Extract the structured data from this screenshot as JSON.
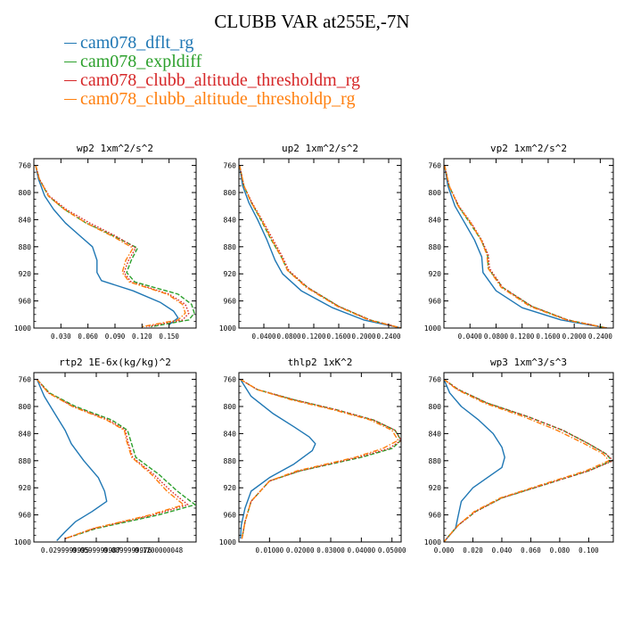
{
  "title": "CLUBB VAR at255E,-7N",
  "legend": [
    {
      "name": "cam078_dflt_rg",
      "color": "#1f77b4",
      "dash": "solid"
    },
    {
      "name": "cam078_expldiff",
      "color": "#2ca02c",
      "dash": "dashed"
    },
    {
      "name": "cam078_clubb_altitude_thresholdm_rg",
      "color": "#d62728",
      "dash": "dotted"
    },
    {
      "name": "cam078_clubb_altitude_thresholdp_rg",
      "color": "#ff7f0e",
      "dash": "dashdot"
    }
  ],
  "chart_data": [
    {
      "type": "line",
      "title": "wp2   1xm^2/s^2",
      "xlim": [
        0.0,
        0.18
      ],
      "ylim": [
        1000,
        750
      ],
      "xticks": [
        0.03,
        0.06,
        0.09,
        0.12,
        0.15
      ],
      "xtick_labels": [
        "0.030",
        "0.060",
        "0.090",
        "0.120",
        "0.150"
      ],
      "yticks": [
        760,
        800,
        840,
        880,
        920,
        960,
        1000
      ],
      "series": [
        {
          "name": "cam078_dflt_rg",
          "x": [
            0.002,
            0.005,
            0.012,
            0.022,
            0.035,
            0.052,
            0.065,
            0.07,
            0.07,
            0.075,
            0.11,
            0.14,
            0.155,
            0.16,
            0.15
          ],
          "y": [
            760,
            780,
            805,
            825,
            845,
            865,
            880,
            900,
            918,
            930,
            945,
            962,
            975,
            985,
            995
          ]
        },
        {
          "name": "cam078_expldiff",
          "x": [
            0.002,
            0.006,
            0.016,
            0.034,
            0.058,
            0.09,
            0.115,
            0.108,
            0.103,
            0.112,
            0.16,
            0.175,
            0.178,
            0.172,
            0.13
          ],
          "y": [
            760,
            780,
            805,
            825,
            845,
            865,
            882,
            900,
            918,
            932,
            950,
            965,
            978,
            988,
            998
          ]
        },
        {
          "name": "cam078_clubb_altitude_thresholdm_rg",
          "x": [
            0.002,
            0.006,
            0.017,
            0.036,
            0.062,
            0.092,
            0.113,
            0.105,
            0.1,
            0.108,
            0.15,
            0.168,
            0.172,
            0.165,
            0.125
          ],
          "y": [
            760,
            780,
            805,
            825,
            845,
            865,
            882,
            900,
            918,
            932,
            950,
            965,
            978,
            988,
            998
          ]
        },
        {
          "name": "cam078_clubb_altitude_thresholdp_rg",
          "x": [
            0.002,
            0.006,
            0.016,
            0.034,
            0.058,
            0.088,
            0.11,
            0.102,
            0.098,
            0.106,
            0.148,
            0.165,
            0.168,
            0.16,
            0.12
          ],
          "y": [
            760,
            780,
            805,
            825,
            845,
            865,
            882,
            900,
            918,
            932,
            950,
            965,
            978,
            988,
            998
          ]
        }
      ]
    },
    {
      "type": "line",
      "title": "up2   1xm^2/s^2",
      "xlim": [
        0.0,
        0.26
      ],
      "ylim": [
        1000,
        750
      ],
      "xticks": [
        0.04,
        0.08,
        0.12,
        0.16,
        0.2,
        0.24
      ],
      "xtick_labels": [
        "0.0400",
        "0.0800",
        "0.1200",
        "0.1600",
        "0.2000",
        "0.2400"
      ],
      "yticks": [
        760,
        800,
        840,
        880,
        920,
        960,
        1000
      ],
      "series": [
        {
          "name": "cam078_dflt_rg",
          "x": [
            0.001,
            0.006,
            0.016,
            0.03,
            0.045,
            0.058,
            0.07,
            0.1,
            0.15,
            0.2,
            0.26
          ],
          "y": [
            760,
            790,
            815,
            840,
            870,
            900,
            920,
            945,
            970,
            988,
            1000
          ]
        },
        {
          "name": "cam078_expldiff",
          "x": [
            0.001,
            0.008,
            0.02,
            0.035,
            0.052,
            0.068,
            0.078,
            0.11,
            0.16,
            0.21,
            0.26
          ],
          "y": [
            760,
            790,
            815,
            840,
            870,
            895,
            915,
            940,
            968,
            988,
            1000
          ]
        },
        {
          "name": "cam078_clubb_altitude_thresholdm_rg",
          "x": [
            0.001,
            0.008,
            0.021,
            0.037,
            0.055,
            0.07,
            0.08,
            0.11,
            0.16,
            0.21,
            0.26
          ],
          "y": [
            760,
            790,
            815,
            840,
            870,
            895,
            915,
            940,
            968,
            988,
            1000
          ]
        },
        {
          "name": "cam078_clubb_altitude_thresholdp_rg",
          "x": [
            0.001,
            0.008,
            0.02,
            0.036,
            0.053,
            0.068,
            0.078,
            0.108,
            0.158,
            0.208,
            0.26
          ],
          "y": [
            760,
            790,
            815,
            840,
            870,
            895,
            915,
            940,
            968,
            988,
            1000
          ]
        }
      ]
    },
    {
      "type": "line",
      "title": "vp2   1xm^2/s^2",
      "xlim": [
        0.0,
        0.26
      ],
      "ylim": [
        1000,
        750
      ],
      "xticks": [
        0.04,
        0.08,
        0.12,
        0.16,
        0.2,
        0.24
      ],
      "xtick_labels": [
        "0.0400",
        "0.0800",
        "0.1200",
        "0.1600",
        "0.2000",
        "0.2400"
      ],
      "yticks": [
        760,
        800,
        840,
        880,
        920,
        960,
        1000
      ],
      "series": [
        {
          "name": "cam078_dflt_rg",
          "x": [
            0.001,
            0.006,
            0.017,
            0.032,
            0.047,
            0.058,
            0.06,
            0.08,
            0.12,
            0.18,
            0.25
          ],
          "y": [
            760,
            790,
            820,
            845,
            870,
            895,
            918,
            945,
            970,
            988,
            1000
          ]
        },
        {
          "name": "cam078_expldiff",
          "x": [
            0.001,
            0.008,
            0.022,
            0.04,
            0.057,
            0.067,
            0.068,
            0.09,
            0.135,
            0.19,
            0.25
          ],
          "y": [
            760,
            790,
            820,
            845,
            870,
            892,
            912,
            940,
            968,
            988,
            1000
          ]
        },
        {
          "name": "cam078_clubb_altitude_thresholdm_rg",
          "x": [
            0.001,
            0.008,
            0.023,
            0.042,
            0.058,
            0.068,
            0.07,
            0.09,
            0.135,
            0.19,
            0.25
          ],
          "y": [
            760,
            790,
            820,
            845,
            870,
            892,
            912,
            940,
            968,
            988,
            1000
          ]
        },
        {
          "name": "cam078_clubb_altitude_thresholdp_rg",
          "x": [
            0.001,
            0.008,
            0.022,
            0.041,
            0.057,
            0.066,
            0.068,
            0.088,
            0.132,
            0.188,
            0.25
          ],
          "y": [
            760,
            790,
            820,
            845,
            870,
            892,
            912,
            940,
            968,
            988,
            1000
          ]
        }
      ]
    },
    {
      "type": "line",
      "title": "rtp2   1E-6x(kg/kg)^2",
      "xlim": [
        0.0,
        0.156
      ],
      "ylim": [
        1000,
        750
      ],
      "xticks": [
        0.03,
        0.06,
        0.09,
        0.12
      ],
      "xtick_labels": [
        "0.0299999995",
        "0.0599999987",
        "0.0899999976",
        "0.1200000048"
      ],
      "yticks": [
        760,
        800,
        840,
        880,
        920,
        960,
        1000
      ],
      "series": [
        {
          "name": "cam078_dflt_rg",
          "x": [
            0.003,
            0.01,
            0.02,
            0.03,
            0.036,
            0.048,
            0.062,
            0.068,
            0.07,
            0.056,
            0.04,
            0.03,
            0.022
          ],
          "y": [
            760,
            785,
            810,
            835,
            855,
            880,
            905,
            925,
            940,
            955,
            970,
            985,
            998
          ]
        },
        {
          "name": "cam078_expldiff",
          "x": [
            0.003,
            0.015,
            0.04,
            0.075,
            0.09,
            0.093,
            0.098,
            0.12,
            0.138,
            0.155,
            0.12,
            0.06,
            0.03
          ],
          "y": [
            760,
            780,
            800,
            820,
            835,
            850,
            875,
            900,
            925,
            945,
            960,
            980,
            995
          ]
        },
        {
          "name": "cam078_clubb_altitude_thresholdm_rg",
          "x": [
            0.003,
            0.014,
            0.038,
            0.072,
            0.088,
            0.09,
            0.095,
            0.115,
            0.132,
            0.148,
            0.115,
            0.058,
            0.03
          ],
          "y": [
            760,
            780,
            800,
            820,
            835,
            850,
            875,
            900,
            925,
            945,
            960,
            980,
            995
          ]
        },
        {
          "name": "cam078_clubb_altitude_thresholdp_rg",
          "x": [
            0.003,
            0.014,
            0.037,
            0.07,
            0.087,
            0.089,
            0.094,
            0.113,
            0.128,
            0.144,
            0.112,
            0.057,
            0.03
          ],
          "y": [
            760,
            780,
            800,
            820,
            835,
            850,
            875,
            900,
            925,
            945,
            960,
            980,
            995
          ]
        }
      ]
    },
    {
      "type": "line",
      "title": "thlp2   1xK^2",
      "xlim": [
        0.0,
        0.053
      ],
      "ylim": [
        1000,
        750
      ],
      "xticks": [
        0.01,
        0.02,
        0.03,
        0.04,
        0.05
      ],
      "xtick_labels": [
        "0.01000",
        "0.02000",
        "0.03000",
        "0.04000",
        "0.05000"
      ],
      "yticks": [
        760,
        800,
        840,
        880,
        920,
        960,
        1000
      ],
      "series": [
        {
          "name": "cam078_dflt_rg",
          "x": [
            0.0005,
            0.004,
            0.011,
            0.018,
            0.023,
            0.025,
            0.024,
            0.018,
            0.01,
            0.004,
            0.002,
            0.0008,
            0.0005
          ],
          "y": [
            760,
            785,
            810,
            830,
            845,
            855,
            865,
            885,
            905,
            925,
            950,
            975,
            995
          ]
        },
        {
          "name": "cam078_expldiff",
          "x": [
            0.0005,
            0.006,
            0.018,
            0.032,
            0.044,
            0.051,
            0.053,
            0.05,
            0.04,
            0.02,
            0.01,
            0.004,
            0.002,
            0.001
          ],
          "y": [
            760,
            775,
            790,
            805,
            820,
            835,
            850,
            862,
            875,
            895,
            910,
            940,
            970,
            995
          ]
        },
        {
          "name": "cam078_clubb_altitude_thresholdm_rg",
          "x": [
            0.0005,
            0.006,
            0.018,
            0.032,
            0.044,
            0.051,
            0.053,
            0.049,
            0.039,
            0.02,
            0.01,
            0.004,
            0.002,
            0.001
          ],
          "y": [
            760,
            775,
            790,
            805,
            820,
            835,
            850,
            862,
            875,
            895,
            910,
            940,
            970,
            995
          ]
        },
        {
          "name": "cam078_clubb_altitude_thresholdp_rg",
          "x": [
            0.0005,
            0.006,
            0.017,
            0.031,
            0.043,
            0.05,
            0.052,
            0.047,
            0.038,
            0.019,
            0.01,
            0.004,
            0.002,
            0.001
          ],
          "y": [
            760,
            775,
            790,
            805,
            820,
            835,
            850,
            862,
            875,
            895,
            910,
            940,
            970,
            995
          ]
        }
      ]
    },
    {
      "type": "line",
      "title": "wp3   1xm^3/s^3",
      "xlim": [
        0.0,
        0.117
      ],
      "ylim": [
        1000,
        750
      ],
      "xticks": [
        0.0,
        0.02,
        0.04,
        0.06,
        0.08,
        0.1
      ],
      "xtick_labels": [
        "0.000",
        "0.020",
        "0.040",
        "0.060",
        "0.080",
        "0.100"
      ],
      "yticks": [
        760,
        800,
        840,
        880,
        920,
        960,
        1000
      ],
      "series": [
        {
          "name": "cam078_dflt_rg",
          "x": [
            0.0,
            0.004,
            0.012,
            0.024,
            0.034,
            0.04,
            0.042,
            0.04,
            0.03,
            0.02,
            0.012,
            0.01,
            0.008,
            0.002,
            0.0
          ],
          "y": [
            760,
            780,
            800,
            820,
            840,
            860,
            875,
            890,
            905,
            920,
            940,
            960,
            980,
            995,
            1000
          ]
        },
        {
          "name": "cam078_expldiff",
          "x": [
            0.0,
            0.01,
            0.03,
            0.058,
            0.082,
            0.1,
            0.112,
            0.116,
            0.1,
            0.07,
            0.04,
            0.022,
            0.01,
            0.003,
            0.0
          ],
          "y": [
            760,
            775,
            795,
            815,
            835,
            855,
            870,
            880,
            895,
            915,
            935,
            955,
            975,
            992,
            1000
          ]
        },
        {
          "name": "cam078_clubb_altitude_thresholdm_rg",
          "x": [
            0.0,
            0.01,
            0.03,
            0.058,
            0.082,
            0.1,
            0.112,
            0.117,
            0.1,
            0.07,
            0.04,
            0.022,
            0.01,
            0.003,
            0.0
          ],
          "y": [
            760,
            775,
            795,
            815,
            835,
            855,
            870,
            880,
            895,
            915,
            935,
            955,
            975,
            992,
            1000
          ]
        },
        {
          "name": "cam078_clubb_altitude_thresholdp_rg",
          "x": [
            0.0,
            0.009,
            0.028,
            0.055,
            0.078,
            0.097,
            0.11,
            0.114,
            0.098,
            0.068,
            0.039,
            0.021,
            0.01,
            0.003,
            0.0
          ],
          "y": [
            760,
            775,
            795,
            815,
            835,
            855,
            870,
            880,
            895,
            915,
            935,
            955,
            975,
            992,
            1000
          ]
        }
      ]
    }
  ]
}
